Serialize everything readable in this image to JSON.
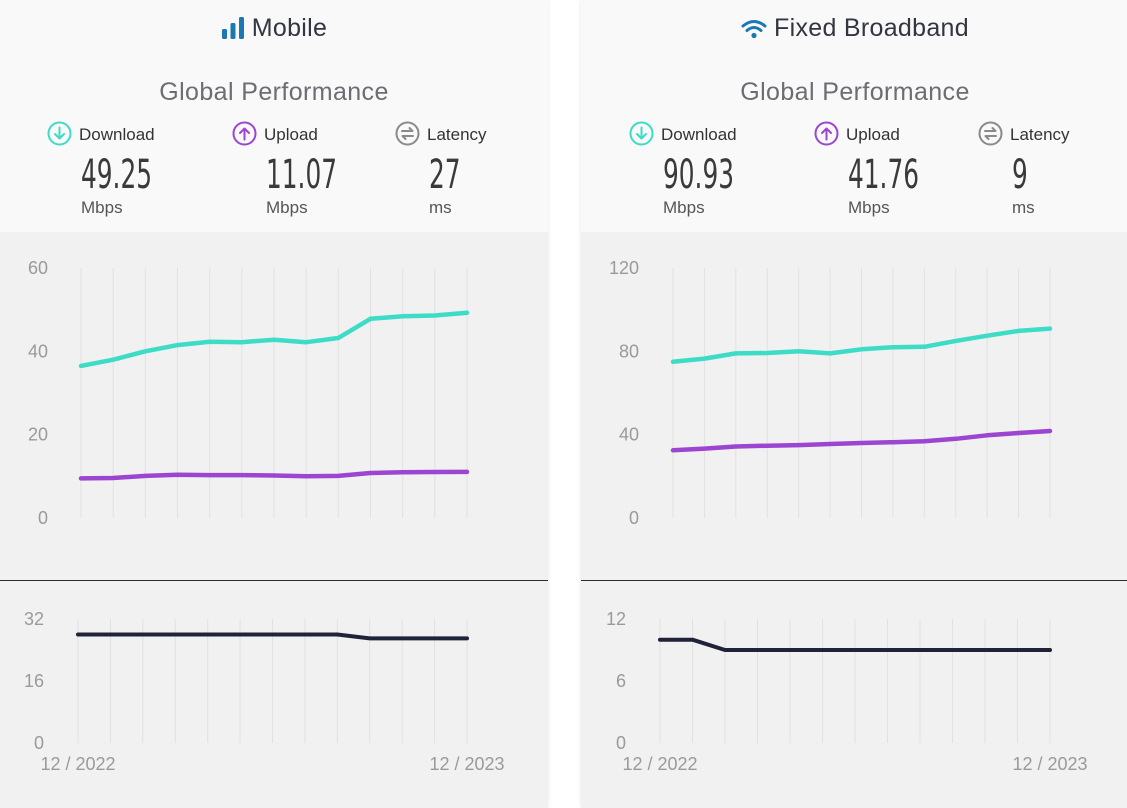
{
  "colors": {
    "download": "#3cdcc6",
    "upload": "#9b45d0",
    "latency": "#1f2238",
    "icon_gray": "#8a8a8a",
    "title_icon": "#1a79b5"
  },
  "panels": [
    {
      "title": "Mobile",
      "title_icon": "signal-bars-icon",
      "subtitle": "Global Performance",
      "metrics": [
        {
          "label": "Download",
          "value": "49.25",
          "unit": "Mbps",
          "icon": "download-arrow-icon"
        },
        {
          "label": "Upload",
          "value": "11.07",
          "unit": "Mbps",
          "icon": "upload-arrow-icon"
        },
        {
          "label": "Latency",
          "value": "27",
          "unit": "ms",
          "icon": "latency-icon"
        }
      ]
    },
    {
      "title": "Fixed Broadband",
      "title_icon": "wifi-icon",
      "subtitle": "Global Performance",
      "metrics": [
        {
          "label": "Download",
          "value": "90.93",
          "unit": "Mbps",
          "icon": "download-arrow-icon"
        },
        {
          "label": "Upload",
          "value": "41.76",
          "unit": "Mbps",
          "icon": "upload-arrow-icon"
        },
        {
          "label": "Latency",
          "value": "9",
          "unit": "ms",
          "icon": "latency-icon"
        }
      ]
    }
  ],
  "chart_data": [
    {
      "type": "line",
      "title": "Mobile - Global Performance (speed)",
      "x": [
        "12/2022",
        "01/2023",
        "02/2023",
        "03/2023",
        "04/2023",
        "05/2023",
        "06/2023",
        "07/2023",
        "08/2023",
        "09/2023",
        "10/2023",
        "11/2023",
        "12/2023"
      ],
      "x_tick_labels": [
        "12 / 2022",
        "12 / 2023"
      ],
      "ylim": [
        0,
        60
      ],
      "yticks": [
        "0",
        "20",
        "40",
        "60"
      ],
      "series": [
        {
          "name": "Download",
          "values": [
            36.5,
            38.0,
            40.0,
            41.5,
            42.3,
            42.2,
            42.8,
            42.2,
            43.2,
            47.8,
            48.4,
            48.6,
            49.25
          ]
        },
        {
          "name": "Upload",
          "values": [
            9.5,
            9.6,
            10.1,
            10.4,
            10.3,
            10.3,
            10.2,
            10.0,
            10.1,
            10.8,
            11.0,
            11.05,
            11.07
          ]
        }
      ]
    },
    {
      "type": "line",
      "title": "Mobile - Latency",
      "x": [
        "12/2022",
        "01/2023",
        "02/2023",
        "03/2023",
        "04/2023",
        "05/2023",
        "06/2023",
        "07/2023",
        "08/2023",
        "09/2023",
        "10/2023",
        "11/2023",
        "12/2023"
      ],
      "x_tick_labels": [
        "12 / 2022",
        "12 / 2023"
      ],
      "ylim": [
        0,
        32
      ],
      "yticks": [
        "0",
        "16",
        "32"
      ],
      "series": [
        {
          "name": "Latency",
          "values": [
            28,
            28,
            28,
            28,
            28,
            28,
            28,
            28,
            28,
            27,
            27,
            27,
            27
          ]
        }
      ]
    },
    {
      "type": "line",
      "title": "Fixed Broadband - Global Performance (speed)",
      "x": [
        "12/2022",
        "01/2023",
        "02/2023",
        "03/2023",
        "04/2023",
        "05/2023",
        "06/2023",
        "07/2023",
        "08/2023",
        "09/2023",
        "10/2023",
        "11/2023",
        "12/2023"
      ],
      "x_tick_labels": [
        "12 / 2022",
        "12 / 2023"
      ],
      "ylim": [
        0,
        120
      ],
      "yticks": [
        "0",
        "40",
        "80",
        "120"
      ],
      "series": [
        {
          "name": "Download",
          "values": [
            75.0,
            76.5,
            79.0,
            79.2,
            80.0,
            79.0,
            81.0,
            82.0,
            82.2,
            85.0,
            87.5,
            89.8,
            90.93
          ]
        },
        {
          "name": "Upload",
          "values": [
            32.5,
            33.3,
            34.3,
            34.7,
            35.0,
            35.5,
            36.0,
            36.4,
            36.8,
            38.0,
            39.7,
            40.8,
            41.76
          ]
        }
      ]
    },
    {
      "type": "line",
      "title": "Fixed Broadband - Latency",
      "x": [
        "12/2022",
        "01/2023",
        "02/2023",
        "03/2023",
        "04/2023",
        "05/2023",
        "06/2023",
        "07/2023",
        "08/2023",
        "09/2023",
        "10/2023",
        "11/2023",
        "12/2023"
      ],
      "x_tick_labels": [
        "12 / 2022",
        "12 / 2023"
      ],
      "ylim": [
        0,
        12
      ],
      "yticks": [
        "0",
        "6",
        "12"
      ],
      "series": [
        {
          "name": "Latency",
          "values": [
            10,
            10,
            9,
            9,
            9,
            9,
            9,
            9,
            9,
            9,
            9,
            9,
            9
          ]
        }
      ]
    }
  ]
}
